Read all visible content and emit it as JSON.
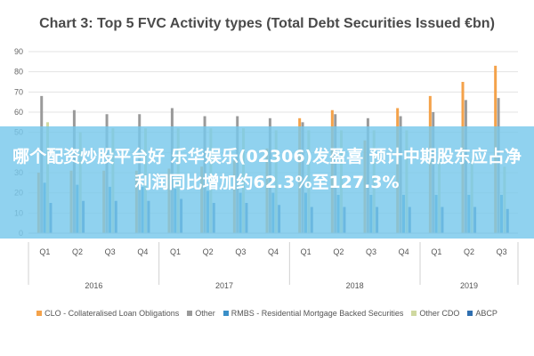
{
  "chart_data": {
    "type": "bar",
    "title": "Chart 3: Top 5 FVC Activity types (Total Debt Securities Issued €bn)",
    "ylim": [
      0,
      90
    ],
    "yticks": [
      0,
      10,
      20,
      30,
      40,
      50,
      60,
      70,
      80,
      90
    ],
    "grid": true,
    "legend_position": "bottom",
    "categories": [
      "Q1",
      "Q2",
      "Q3",
      "Q4",
      "Q1",
      "Q2",
      "Q3",
      "Q4",
      "Q1",
      "Q2",
      "Q3",
      "Q4",
      "Q1",
      "Q2",
      "Q3"
    ],
    "year_groups": [
      {
        "label": "2016",
        "count": 4
      },
      {
        "label": "2017",
        "count": 4
      },
      {
        "label": "2018",
        "count": 4
      },
      {
        "label": "2019",
        "count": 3
      }
    ],
    "series": [
      {
        "name": "CLO - Collateralised Loan Obligations",
        "color": "#f4a24a",
        "values": [
          30,
          31,
          31,
          31,
          32,
          33,
          36,
          42,
          57,
          61,
          46,
          62,
          68,
          75,
          83
        ]
      },
      {
        "name": "Other",
        "color": "#9a9a9a",
        "values": [
          68,
          61,
          59,
          59,
          62,
          58,
          58,
          57,
          55,
          59,
          57,
          58,
          60,
          66,
          67
        ]
      },
      {
        "name": "RMBS - Residential Mortgage Backed Securities",
        "color": "#3a8fc8",
        "values": [
          25,
          24,
          23,
          23,
          22,
          21,
          20,
          20,
          20,
          19,
          19,
          19,
          19,
          19,
          19
        ]
      },
      {
        "name": "Other CDO",
        "color": "#cfd8a0",
        "values": [
          55,
          50,
          52,
          52,
          52,
          52,
          52,
          51,
          51,
          51,
          51,
          51,
          38,
          37,
          33
        ]
      },
      {
        "name": "ABCP",
        "color": "#2f6fb0",
        "values": [
          15,
          16,
          16,
          16,
          17,
          15,
          15,
          14,
          13,
          13,
          13,
          13,
          13,
          13,
          12
        ]
      }
    ]
  },
  "overlay": {
    "text": "哪个配资炒股平台好 乐华娱乐(02306)发盈喜 预计中期股东应占净利润同比增加约62.3%至127.3%"
  }
}
